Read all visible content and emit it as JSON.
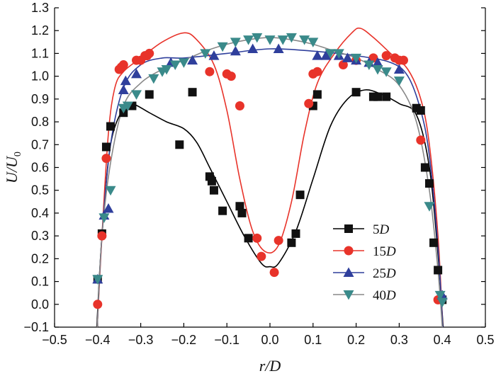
{
  "chart_data": {
    "type": "scatter",
    "title": "",
    "xlabel": "r/D",
    "ylabel": "U/U0",
    "xlim": [
      -0.5,
      0.5
    ],
    "ylim": [
      -0.1,
      1.3
    ],
    "x_ticks": [
      "-0.5",
      "-0.4",
      "-0.3",
      "-0.2",
      "-0.1",
      "0.0",
      "0.1",
      "0.2",
      "0.3",
      "0.4",
      "0.5"
    ],
    "y_ticks": [
      "-0.1",
      "0.0",
      "0.1",
      "0.2",
      "0.3",
      "0.4",
      "0.5",
      "0.6",
      "0.7",
      "0.8",
      "0.9",
      "1.0",
      "1.1",
      "1.2",
      "1.3"
    ],
    "grid": false,
    "legend_position": "center-right",
    "series": [
      {
        "name": "5D",
        "num": "5",
        "unit": "D",
        "marker": "square",
        "color": "#111111",
        "line_color": "#000000",
        "points": [
          [
            -0.4,
            0.11
          ],
          [
            -0.39,
            0.31
          ],
          [
            -0.38,
            0.69
          ],
          [
            -0.37,
            0.78
          ],
          [
            -0.34,
            0.84
          ],
          [
            -0.32,
            0.87
          ],
          [
            -0.28,
            0.92
          ],
          [
            -0.21,
            0.7
          ],
          [
            -0.18,
            0.93
          ],
          [
            -0.14,
            0.56
          ],
          [
            -0.135,
            0.54
          ],
          [
            -0.13,
            0.5
          ],
          [
            -0.11,
            0.41
          ],
          [
            -0.07,
            0.43
          ],
          [
            -0.065,
            0.4
          ],
          [
            -0.05,
            0.29
          ],
          [
            0.05,
            0.27
          ],
          [
            0.06,
            0.31
          ],
          [
            0.07,
            0.48
          ],
          [
            0.1,
            0.87
          ],
          [
            0.11,
            0.92
          ],
          [
            0.2,
            0.93
          ],
          [
            0.24,
            0.91
          ],
          [
            0.25,
            0.91
          ],
          [
            0.27,
            0.91
          ],
          [
            0.34,
            0.86
          ],
          [
            0.35,
            0.85
          ],
          [
            0.36,
            0.6
          ],
          [
            0.37,
            0.53
          ],
          [
            0.38,
            0.27
          ],
          [
            0.39,
            0.15
          ],
          [
            0.4,
            0.02
          ]
        ],
        "fit": [
          [
            -0.402,
            -0.1
          ],
          [
            -0.39,
            0.3
          ],
          [
            -0.37,
            0.7
          ],
          [
            -0.34,
            0.86
          ],
          [
            -0.32,
            0.88
          ],
          [
            -0.28,
            0.84
          ],
          [
            -0.24,
            0.8
          ],
          [
            -0.2,
            0.77
          ],
          [
            -0.17,
            0.71
          ],
          [
            -0.14,
            0.6
          ],
          [
            -0.1,
            0.45
          ],
          [
            -0.06,
            0.3
          ],
          [
            -0.02,
            0.18
          ],
          [
            0.0,
            0.165
          ],
          [
            0.02,
            0.18
          ],
          [
            0.06,
            0.32
          ],
          [
            0.1,
            0.55
          ],
          [
            0.14,
            0.78
          ],
          [
            0.18,
            0.9
          ],
          [
            0.22,
            0.94
          ],
          [
            0.26,
            0.92
          ],
          [
            0.3,
            0.88
          ],
          [
            0.34,
            0.83
          ],
          [
            0.37,
            0.6
          ],
          [
            0.39,
            0.22
          ],
          [
            0.402,
            -0.1
          ]
        ]
      },
      {
        "name": "15D",
        "num": "15",
        "unit": "D",
        "marker": "circle",
        "color": "#e8332a",
        "line_color": "#e8332a",
        "points": [
          [
            -0.4,
            0.0
          ],
          [
            -0.39,
            0.3
          ],
          [
            -0.38,
            0.64
          ],
          [
            -0.35,
            1.03
          ],
          [
            -0.345,
            1.04
          ],
          [
            -0.34,
            1.05
          ],
          [
            -0.31,
            1.07
          ],
          [
            -0.3,
            1.07
          ],
          [
            -0.29,
            1.09
          ],
          [
            -0.285,
            1.09
          ],
          [
            -0.28,
            1.1
          ],
          [
            -0.14,
            1.02
          ],
          [
            -0.1,
            1.01
          ],
          [
            -0.09,
            1.0
          ],
          [
            -0.07,
            0.87
          ],
          [
            -0.03,
            0.29
          ],
          [
            -0.02,
            0.21
          ],
          [
            0.01,
            0.14
          ],
          [
            0.02,
            0.28
          ],
          [
            0.09,
            0.88
          ],
          [
            0.1,
            1.01
          ],
          [
            0.11,
            1.02
          ],
          [
            0.17,
            1.05
          ],
          [
            0.2,
            1.07
          ],
          [
            0.24,
            1.08
          ],
          [
            0.27,
            1.09
          ],
          [
            0.29,
            1.08
          ],
          [
            0.3,
            1.07
          ],
          [
            0.31,
            1.07
          ],
          [
            0.35,
            0.72
          ],
          [
            0.39,
            0.02
          ]
        ],
        "fit": [
          [
            -0.401,
            -0.1
          ],
          [
            -0.39,
            0.3
          ],
          [
            -0.375,
            0.75
          ],
          [
            -0.36,
            0.95
          ],
          [
            -0.34,
            1.02
          ],
          [
            -0.3,
            1.08
          ],
          [
            -0.25,
            1.15
          ],
          [
            -0.2,
            1.19
          ],
          [
            -0.17,
            1.16
          ],
          [
            -0.13,
            1.05
          ],
          [
            -0.1,
            0.85
          ],
          [
            -0.07,
            0.55
          ],
          [
            -0.04,
            0.32
          ],
          [
            -0.01,
            0.23
          ],
          [
            0.02,
            0.26
          ],
          [
            0.05,
            0.45
          ],
          [
            0.08,
            0.75
          ],
          [
            0.11,
            0.97
          ],
          [
            0.15,
            1.1
          ],
          [
            0.19,
            1.19
          ],
          [
            0.21,
            1.21
          ],
          [
            0.24,
            1.17
          ],
          [
            0.28,
            1.1
          ],
          [
            0.32,
            1.03
          ],
          [
            0.35,
            0.9
          ],
          [
            0.37,
            0.7
          ],
          [
            0.39,
            0.3
          ],
          [
            0.401,
            -0.1
          ]
        ]
      },
      {
        "name": "25D",
        "num": "25",
        "unit": "D",
        "marker": "triangle-up",
        "color": "#2f3f9c",
        "line_color": "#2f3f9c",
        "points": [
          [
            -0.4,
            0.11
          ],
          [
            -0.385,
            0.39
          ],
          [
            -0.375,
            0.42
          ],
          [
            -0.34,
            0.94
          ],
          [
            -0.335,
            0.98
          ],
          [
            -0.31,
            1.01
          ],
          [
            -0.23,
            1.06
          ],
          [
            -0.18,
            1.07
          ],
          [
            -0.13,
            1.09
          ],
          [
            -0.08,
            1.11
          ],
          [
            -0.04,
            1.12
          ],
          [
            0.02,
            1.12
          ],
          [
            0.11,
            1.09
          ],
          [
            0.13,
            1.09
          ],
          [
            0.16,
            1.09
          ],
          [
            0.18,
            1.08
          ],
          [
            0.2,
            1.07
          ],
          [
            0.23,
            1.06
          ],
          [
            0.25,
            1.06
          ],
          [
            0.3,
            1.03
          ],
          [
            0.4,
            0.04
          ]
        ],
        "fit": [
          [
            -0.401,
            -0.1
          ],
          [
            -0.39,
            0.3
          ],
          [
            -0.37,
            0.7
          ],
          [
            -0.34,
            0.95
          ],
          [
            -0.3,
            1.05
          ],
          [
            -0.25,
            1.08
          ],
          [
            -0.2,
            1.08
          ],
          [
            -0.1,
            1.1
          ],
          [
            0.0,
            1.12
          ],
          [
            0.1,
            1.11
          ],
          [
            0.2,
            1.09
          ],
          [
            0.28,
            1.06
          ],
          [
            0.32,
            1.0
          ],
          [
            0.35,
            0.85
          ],
          [
            0.37,
            0.65
          ],
          [
            0.39,
            0.25
          ],
          [
            0.401,
            -0.1
          ]
        ]
      },
      {
        "name": "40D",
        "num": "40",
        "unit": "D",
        "marker": "triangle-down",
        "color": "#3a8a8a",
        "line_color": "#888888",
        "points": [
          [
            -0.4,
            0.11
          ],
          [
            -0.385,
            0.38
          ],
          [
            -0.37,
            0.5
          ],
          [
            -0.34,
            0.86
          ],
          [
            -0.33,
            0.87
          ],
          [
            -0.31,
            0.92
          ],
          [
            -0.27,
            0.99
          ],
          [
            -0.25,
            1.02
          ],
          [
            -0.24,
            1.03
          ],
          [
            -0.22,
            1.05
          ],
          [
            -0.2,
            1.06
          ],
          [
            -0.15,
            1.1
          ],
          [
            -0.11,
            1.13
          ],
          [
            -0.08,
            1.15
          ],
          [
            -0.05,
            1.16
          ],
          [
            -0.03,
            1.17
          ],
          [
            0.0,
            1.16
          ],
          [
            0.03,
            1.16
          ],
          [
            0.05,
            1.17
          ],
          [
            0.08,
            1.16
          ],
          [
            0.1,
            1.15
          ],
          [
            0.14,
            1.1
          ],
          [
            0.16,
            1.1
          ],
          [
            0.2,
            1.08
          ],
          [
            0.23,
            1.05
          ],
          [
            0.25,
            1.03
          ],
          [
            0.27,
            1.02
          ],
          [
            0.3,
            0.98
          ],
          [
            0.37,
            0.43
          ],
          [
            0.395,
            0.04
          ],
          [
            0.4,
            0.01
          ]
        ],
        "fit": [
          [
            -0.401,
            -0.1
          ],
          [
            -0.39,
            0.3
          ],
          [
            -0.37,
            0.62
          ],
          [
            -0.34,
            0.87
          ],
          [
            -0.3,
            0.97
          ],
          [
            -0.25,
            1.03
          ],
          [
            -0.2,
            1.07
          ],
          [
            -0.15,
            1.11
          ],
          [
            -0.1,
            1.14
          ],
          [
            -0.05,
            1.16
          ],
          [
            0.0,
            1.17
          ],
          [
            0.05,
            1.16
          ],
          [
            0.1,
            1.14
          ],
          [
            0.15,
            1.11
          ],
          [
            0.2,
            1.08
          ],
          [
            0.25,
            1.03
          ],
          [
            0.3,
            0.96
          ],
          [
            0.34,
            0.8
          ],
          [
            0.37,
            0.5
          ],
          [
            0.39,
            0.15
          ],
          [
            0.4,
            -0.1
          ]
        ]
      }
    ]
  }
}
